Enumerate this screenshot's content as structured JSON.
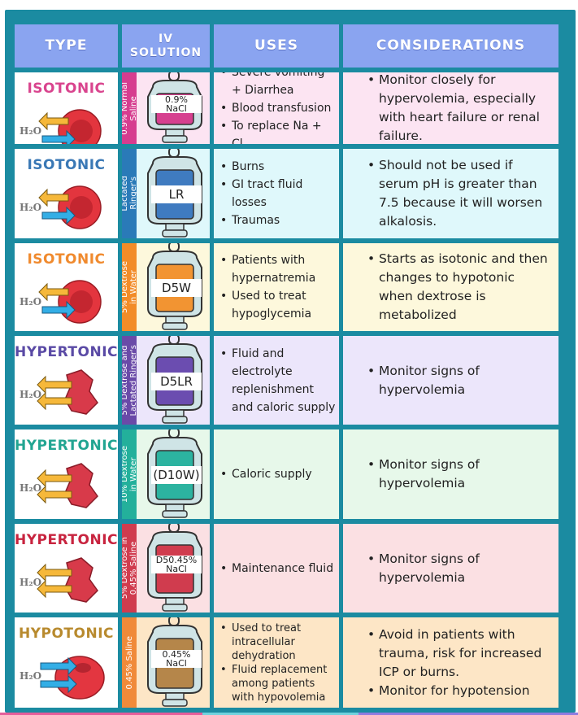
{
  "headers": {
    "type": "TYPE",
    "iv": "IV\nSOLUTION",
    "uses": "USES",
    "considerations": "CONSIDERATIONS"
  },
  "rows": [
    {
      "type": "ISOTONIC",
      "type_color": "#d9448e",
      "bg": "#fce4f2",
      "strip_color": "#d63d8f",
      "fluid_color": "#d6408f",
      "solution": "0.9% Normal\nSaline",
      "bag_label": "0.9%\nNaCl",
      "tonicity": "isotonic",
      "uses": [
        "Severe vomiting + Diarrhea",
        "Blood transfusion",
        "To replace Na + Cl"
      ],
      "considerations": [
        "Monitor closely for hypervolemia, especially with heart failure or renal failure."
      ]
    },
    {
      "type": "ISOTONIC",
      "type_color": "#3a78b5",
      "bg": "#dff8fb",
      "strip_color": "#2a7ab8",
      "fluid_color": "#3f7bc0",
      "solution": "Lactated\nRinger's",
      "bag_label": "LR",
      "tonicity": "isotonic",
      "uses": [
        "Burns",
        "GI tract fluid losses",
        "Traumas"
      ],
      "considerations": [
        "Should not be used if serum pH is greater than 7.5 because it will worsen alkalosis."
      ]
    },
    {
      "type": "ISOTONIC",
      "type_color": "#f08a2e",
      "bg": "#fdf8dc",
      "strip_color": "#f28c28",
      "fluid_color": "#f29432",
      "solution": "5% Dextrose\nin Water",
      "bag_label": "D5W",
      "tonicity": "isotonic",
      "uses": [
        "Patients with hypernatremia",
        "Used to treat hypoglycemia"
      ],
      "considerations": [
        "Starts as isotonic and then changes to hypotonic when dextrose is metabolized"
      ]
    },
    {
      "type": "HYPERTONIC",
      "type_color": "#5a4aa5",
      "bg": "#ece6fb",
      "strip_color": "#6a4aa8",
      "fluid_color": "#6b4db0",
      "solution": "5% Dextrose and\nLactated Ringer's",
      "bag_label": "D5LR",
      "tonicity": "hypertonic",
      "uses": [
        "Fluid and electrolyte replenishment and caloric supply"
      ],
      "considerations": [
        "Monitor signs of hypervolemia"
      ]
    },
    {
      "type": "HYPERTONIC",
      "type_color": "#22a592",
      "bg": "#e7f8ea",
      "strip_color": "#23b09b",
      "fluid_color": "#2cb3a0",
      "solution": "10% Dextrose\nin Water",
      "bag_label": "(D10W)",
      "tonicity": "hypertonic",
      "uses": [
        "Caloric supply"
      ],
      "considerations": [
        "Monitor signs of hypervolemia"
      ]
    },
    {
      "type": "HYPERTONIC",
      "type_color": "#c8243f",
      "bg": "#fbe0e3",
      "strip_color": "#d03c4e",
      "fluid_color": "#d03c4e",
      "solution": "5% Dextrose in\n0.45% Saline",
      "bag_label": "D50.45%\nNaCl",
      "tonicity": "hypertonic",
      "uses": [
        "Maintenance fluid"
      ],
      "considerations": [
        "Monitor signs of hypervolemia"
      ]
    },
    {
      "type": "HYPOTONIC",
      "type_color": "#b88a2e",
      "bg": "#fde6c6",
      "strip_color": "#f08a3a",
      "fluid_color": "#b5864a",
      "solution": "0.45% Saline",
      "bag_label": "0.45%\nNaCl",
      "tonicity": "hypotonic",
      "uses": [
        "Used to treat intracellular dehydration",
        "Fluid replacement among patients with hypovolemia"
      ],
      "considerations": [
        "Avoid in patients with trauma, risk for increased ICP or burns.",
        "Monitor for hypotension"
      ]
    }
  ],
  "cell_label": "H2O",
  "row_heights": []
}
